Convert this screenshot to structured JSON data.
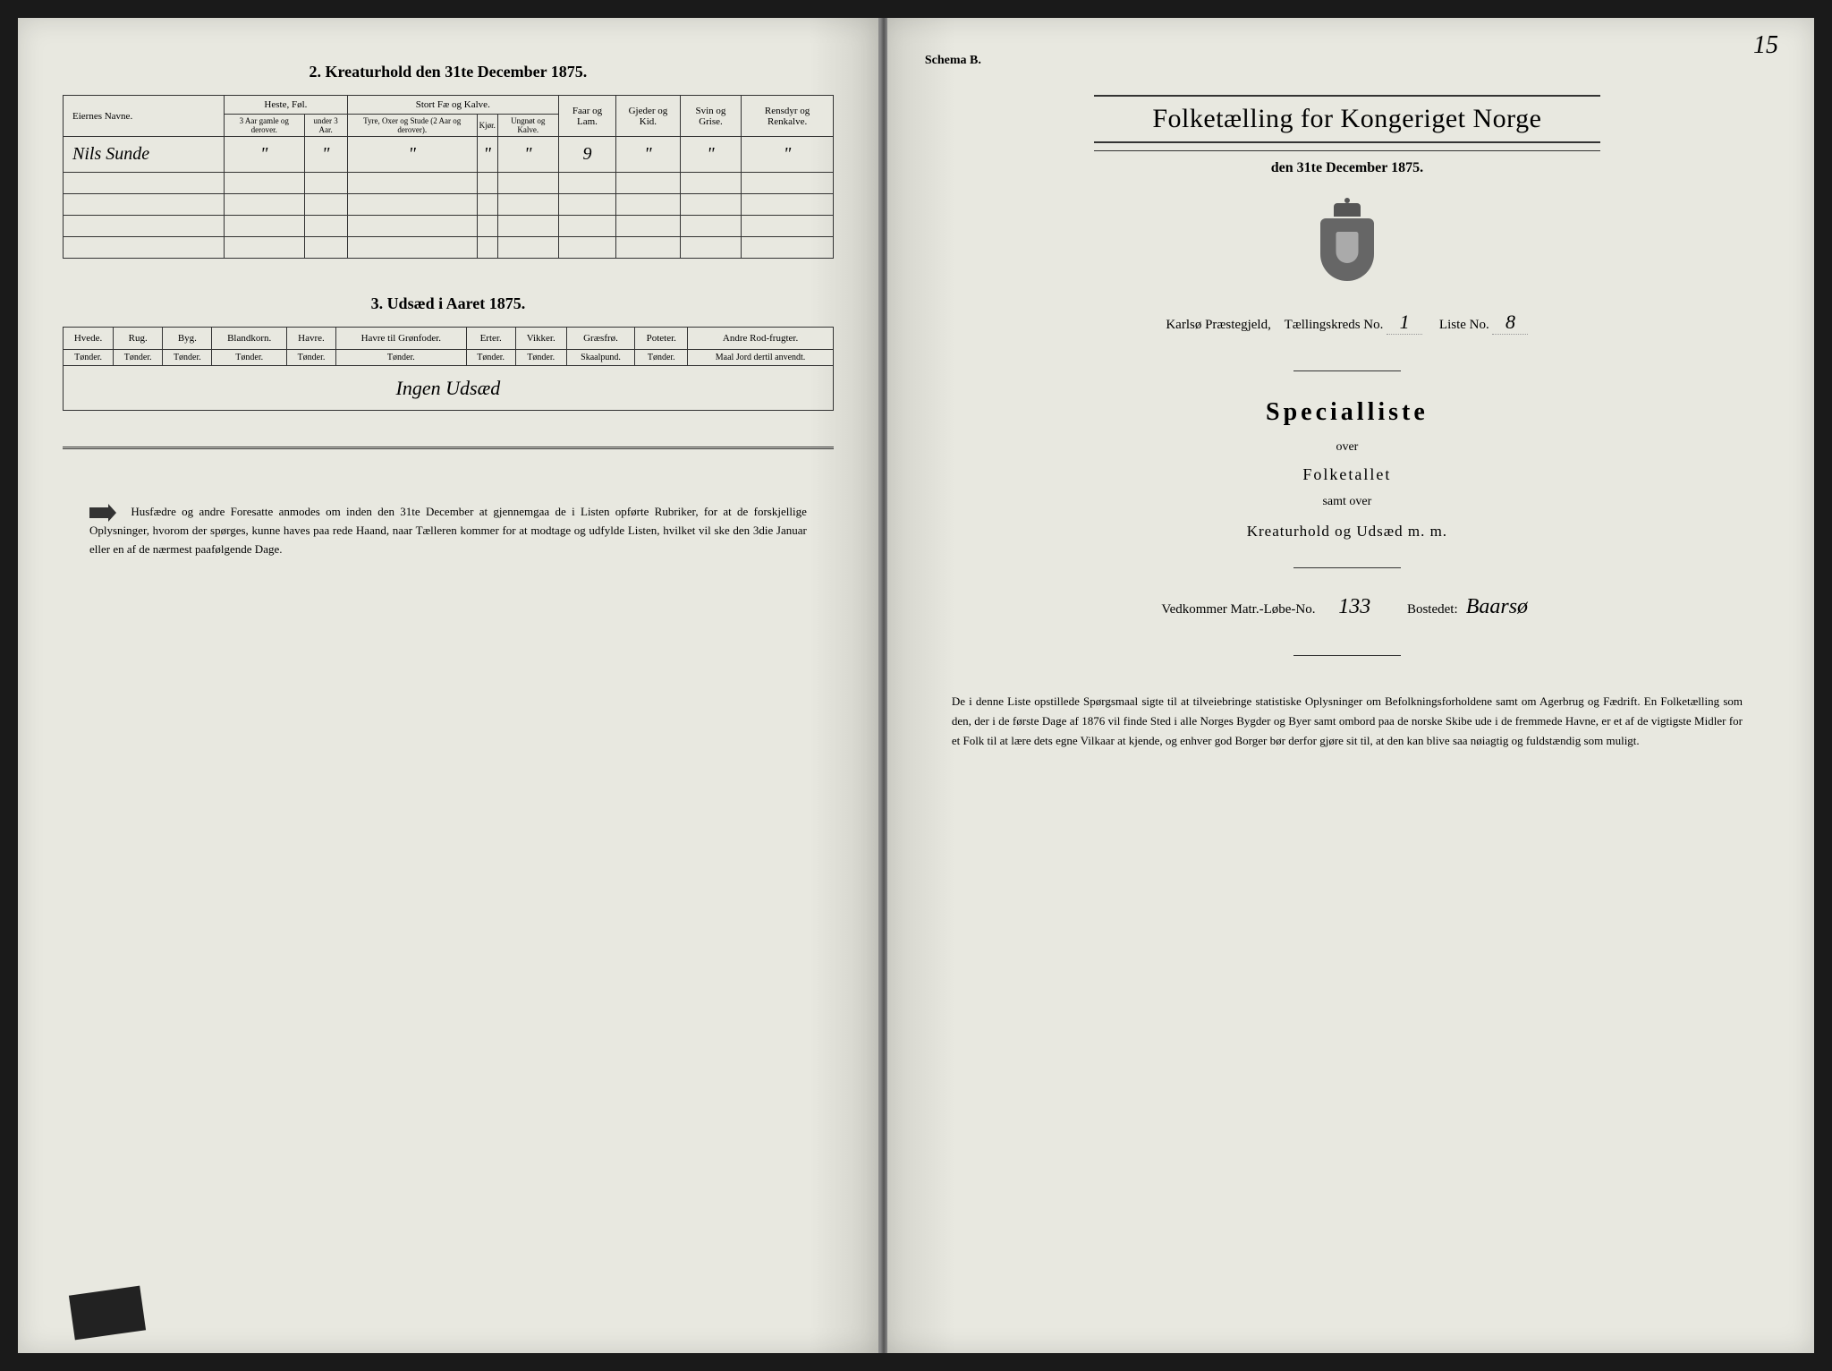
{
  "pageNumber": "15",
  "leftPage": {
    "section2": {
      "title": "2. Kreaturhold den 31te December 1875.",
      "headers": {
        "owner": "Eiernes Navne.",
        "horses": "Heste, Føl.",
        "cattle": "Stort Fæ og Kalve.",
        "sheep": "Faar og Lam.",
        "goats": "Gjeder og Kid.",
        "pigs": "Svin og Grise.",
        "reindeer": "Rensdyr og Renkalve.",
        "sub": {
          "h1": "3 Aar gamle og derover.",
          "h2": "under 3 Aar.",
          "c1": "Tyre, Oxer og Stude (2 Aar og derover).",
          "c2": "Kjør.",
          "c3": "Ungnøt og Kalve."
        }
      },
      "row": {
        "owner": "Nils Sunde",
        "h1": "\"",
        "h2": "\"",
        "c1": "\"",
        "c2": "\"",
        "c3": "\"",
        "sheep": "9",
        "goats": "\"",
        "pigs": "\"",
        "reindeer": "\""
      }
    },
    "section3": {
      "title": "3. Udsæd i Aaret 1875.",
      "headers": {
        "wheat": "Hvede.",
        "rye": "Rug.",
        "barley": "Byg.",
        "mixed": "Blandkorn.",
        "oats": "Havre.",
        "oatsGreen": "Havre til Grønfoder.",
        "peas": "Erter.",
        "vetch": "Vikker.",
        "grass": "Græsfrø.",
        "potato": "Poteter.",
        "other": "Andre Rod-frugter.",
        "unit": "Tønder.",
        "unitGrass": "Skaalpund.",
        "unitOther": "Maal Jord dertil anvendt."
      },
      "row": "Ingen Udsæd"
    },
    "footerNote": "Husfædre og andre Foresatte anmodes om inden den 31te December at gjennemgaa de i Listen opførte Rubriker, for at de forskjellige Oplysninger, hvorom der spørges, kunne haves paa rede Haand, naar Tælleren kommer for at modtage og udfylde Listen, hvilket vil ske den 3die Januar eller en af de nærmest paafølgende Dage."
  },
  "rightPage": {
    "schema": "Schema B.",
    "mainTitle": "Folketælling for Kongeriget Norge",
    "subDate": "den 31te December 1875.",
    "censusLine": {
      "parish": "Karlsø Præstegjeld,",
      "districtLabel": "Tællingskreds No.",
      "districtNo": "1",
      "listLabel": "Liste No.",
      "listNo": "8"
    },
    "specialTitle": "Specialliste",
    "over": "over",
    "folketallet": "Folketallet",
    "samt": "samt over",
    "kreaturLine": "Kreaturhold og Udsæd m. m.",
    "vedkommer": {
      "label1": "Vedkommer Matr.-Løbe-No.",
      "matrNo": "133",
      "label2": "Bostedet:",
      "place": "Baarsø"
    },
    "bottomPara": "De i denne Liste opstillede Spørgsmaal sigte til at tilveiebringe statistiske Oplysninger om Befolkningsforholdene samt om Agerbrug og Fædrift. En Folketælling som den, der i de første Dage af 1876 vil finde Sted i alle Norges Bygder og Byer samt ombord paa de norske Skibe ude i de fremmede Havne, er et af de vigtigste Midler for et Folk til at lære dets egne Vilkaar at kjende, og enhver god Borger bør derfor gjøre sit til, at den kan blive saa nøiagtig og fuldstændig som muligt."
  }
}
